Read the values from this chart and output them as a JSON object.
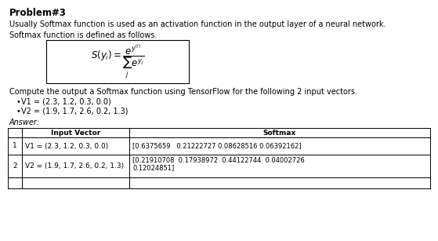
{
  "title": "Problem#3",
  "para1": "Usually Softmax function is used as an activation function in the output layer of a neural network.",
  "para2": "Softmax function is defined as follows.",
  "compute_text": "Compute the output a Softmax function using TensorFlow for the following 2 input vectors.",
  "bullet1": "V1 = (2.3, 1.2, 0.3, 0.0)",
  "bullet2": "V2 = (1.9, 1.7, 2.6, 0.2, 1.3)",
  "answer_label": "Answer:",
  "col_header1": "Input Vector",
  "col_header2": "Softmax",
  "row1_idx": "1",
  "row1_input": "V1 = (2.3, 1.2, 0.3, 0.0)",
  "row1_softmax": "[0.6375659   0.21222727 0.08628516 0.06392162]",
  "row2_idx": "2",
  "row2_input": "V2 = (1.9, 1.7, 2.6, 0.2, 1.3)",
  "row2_softmax_line1": "[0.21910708  0.17938972  0.44122744  0.04002726",
  "row2_softmax_line2": "0.12024851]",
  "bg_color": "#ffffff",
  "text_color": "#000000",
  "fs_title": 8.5,
  "fs_body": 7.0,
  "fs_formula": 7.5,
  "fs_table": 6.5
}
